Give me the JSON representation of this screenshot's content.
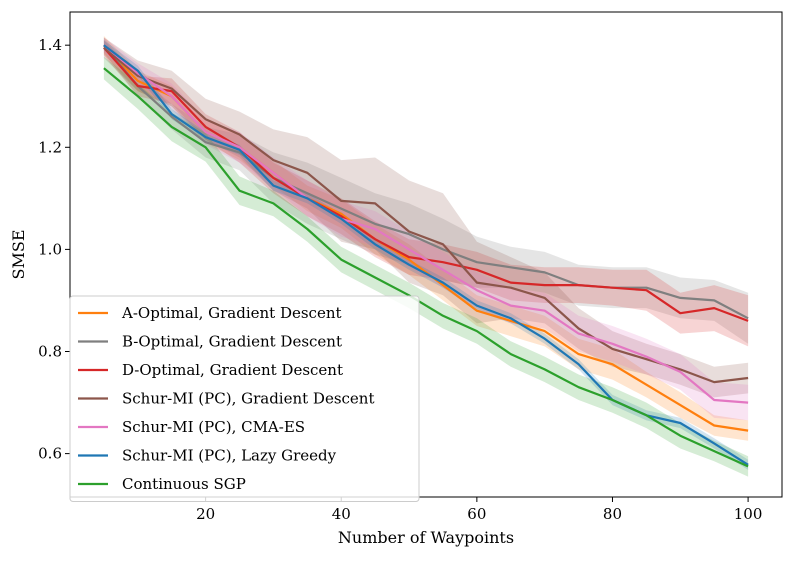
{
  "chart_data": {
    "type": "line",
    "title": "",
    "xlabel": "Number of Waypoints",
    "ylabel": "SMSE",
    "xlim": [
      0,
      105
    ],
    "ylim": [
      0.515,
      1.465
    ],
    "xticks": [
      20,
      40,
      60,
      80,
      100
    ],
    "yticks": [
      0.6,
      0.8,
      1.0,
      1.2,
      1.4
    ],
    "xtick_labels": [
      "20",
      "40",
      "60",
      "80",
      "100"
    ],
    "ytick_labels": [
      "0.6",
      "0.8",
      "1.0",
      "1.2",
      "1.4"
    ],
    "grid": false,
    "legend_position": "lower-left",
    "x": [
      5,
      10,
      15,
      20,
      25,
      30,
      35,
      40,
      45,
      50,
      55,
      60,
      65,
      70,
      75,
      80,
      85,
      90,
      95,
      100
    ],
    "series": [
      {
        "name": "A-Optimal, Gradient Descent",
        "color": "#ff7f0e",
        "values": [
          1.4,
          1.33,
          1.3,
          1.23,
          1.2,
          1.15,
          1.1,
          1.07,
          1.02,
          0.98,
          0.93,
          0.88,
          0.86,
          0.84,
          0.795,
          0.775,
          0.735,
          0.695,
          0.655,
          0.645
        ],
        "band": [
          0.018,
          0.02,
          0.02,
          0.022,
          0.025,
          0.025,
          0.025,
          0.028,
          0.03,
          0.03,
          0.03,
          0.03,
          0.03,
          0.03,
          0.03,
          0.03,
          0.025,
          0.025,
          0.02,
          0.02
        ]
      },
      {
        "name": "B-Optimal, Gradient Descent",
        "color": "#7f7f7f",
        "values": [
          1.4,
          1.32,
          1.26,
          1.21,
          1.19,
          1.14,
          1.11,
          1.08,
          1.05,
          1.03,
          1.0,
          0.975,
          0.965,
          0.955,
          0.93,
          0.925,
          0.925,
          0.905,
          0.9,
          0.865
        ],
        "band": [
          0.015,
          0.02,
          0.025,
          0.03,
          0.035,
          0.05,
          0.06,
          0.06,
          0.06,
          0.06,
          0.06,
          0.05,
          0.04,
          0.04,
          0.04,
          0.04,
          0.04,
          0.04,
          0.04,
          0.05
        ]
      },
      {
        "name": "D-Optimal, Gradient Descent",
        "color": "#d62728",
        "values": [
          1.395,
          1.32,
          1.31,
          1.24,
          1.2,
          1.14,
          1.1,
          1.065,
          1.02,
          0.985,
          0.975,
          0.96,
          0.935,
          0.93,
          0.93,
          0.925,
          0.92,
          0.875,
          0.885,
          0.86
        ],
        "band": [
          0.015,
          0.02,
          0.025,
          0.025,
          0.03,
          0.03,
          0.035,
          0.035,
          0.035,
          0.035,
          0.035,
          0.035,
          0.035,
          0.035,
          0.035,
          0.035,
          0.04,
          0.04,
          0.045,
          0.05
        ]
      },
      {
        "name": "Schur-MI (PC), Gradient Descent",
        "color": "#8c564b",
        "values": [
          1.395,
          1.34,
          1.315,
          1.255,
          1.225,
          1.175,
          1.15,
          1.095,
          1.09,
          1.035,
          1.01,
          0.935,
          0.925,
          0.905,
          0.845,
          0.805,
          0.785,
          0.765,
          0.74,
          0.748
        ],
        "band": [
          0.02,
          0.03,
          0.035,
          0.04,
          0.045,
          0.06,
          0.07,
          0.08,
          0.09,
          0.1,
          0.1,
          0.08,
          0.06,
          0.05,
          0.04,
          0.035,
          0.03,
          0.03,
          0.03,
          0.03
        ]
      },
      {
        "name": "Schur-MI (PC), CMA-ES",
        "color": "#e377c2",
        "values": [
          1.4,
          1.345,
          1.3,
          1.23,
          1.2,
          1.15,
          1.1,
          1.06,
          1.04,
          1.0,
          0.96,
          0.92,
          0.89,
          0.88,
          0.835,
          0.815,
          0.79,
          0.76,
          0.705,
          0.7
        ],
        "band": [
          0.015,
          0.02,
          0.025,
          0.025,
          0.03,
          0.03,
          0.035,
          0.035,
          0.035,
          0.035,
          0.035,
          0.035,
          0.035,
          0.035,
          0.035,
          0.035,
          0.035,
          0.035,
          0.035,
          0.035
        ]
      },
      {
        "name": "Schur-MI (PC), Lazy Greedy",
        "color": "#1f77b4",
        "values": [
          1.4,
          1.35,
          1.265,
          1.22,
          1.195,
          1.125,
          1.1,
          1.06,
          1.01,
          0.97,
          0.935,
          0.89,
          0.865,
          0.825,
          0.775,
          0.705,
          0.675,
          0.66,
          0.62,
          0.578
        ],
        "band": [
          0.01,
          0.01,
          0.01,
          0.01,
          0.01,
          0.01,
          0.01,
          0.01,
          0.01,
          0.01,
          0.01,
          0.01,
          0.01,
          0.01,
          0.01,
          0.01,
          0.01,
          0.01,
          0.01,
          0.01
        ]
      },
      {
        "name": "Continuous SGP",
        "color": "#2ca02c",
        "values": [
          1.355,
          1.3,
          1.24,
          1.2,
          1.115,
          1.09,
          1.04,
          0.98,
          0.945,
          0.91,
          0.87,
          0.84,
          0.795,
          0.765,
          0.73,
          0.705,
          0.675,
          0.635,
          0.605,
          0.575
        ],
        "band": [
          0.022,
          0.025,
          0.028,
          0.028,
          0.028,
          0.025,
          0.025,
          0.025,
          0.025,
          0.025,
          0.025,
          0.025,
          0.025,
          0.025,
          0.025,
          0.025,
          0.025,
          0.025,
          0.02,
          0.02
        ]
      }
    ]
  }
}
